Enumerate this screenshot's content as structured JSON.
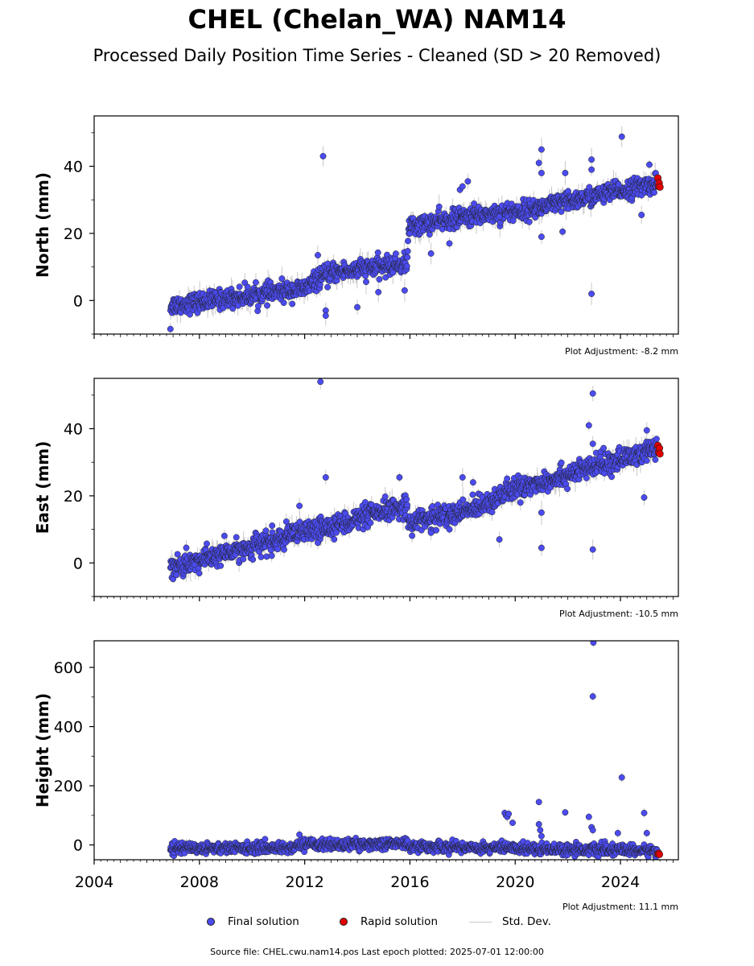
{
  "header": {
    "title": "CHEL (Chelan_WA) NAM14",
    "subtitle": "Processed Daily Position Time Series - Cleaned (SD > 20 Removed)"
  },
  "legend": {
    "final_label": "Final solution",
    "rapid_label": "Rapid solution",
    "std_label": "Std. Dev."
  },
  "footer": {
    "source": "Source file: CHEL.cwu.nam14.pos  Last epoch plotted: 2025-07-01 12:00:00"
  },
  "colors": {
    "final": "#4b4bf0",
    "rapid": "#e00000",
    "stddev": "#c8c8c8",
    "marker_edge": "#202020"
  },
  "chart_data": [
    {
      "type": "scatter",
      "ylabel": "North (mm)",
      "adjustment": "Plot Adjustment: -8.2 mm",
      "xlim": [
        2004,
        2026.2
      ],
      "ylim": [
        -10,
        55
      ],
      "yticks": [
        0,
        20,
        40
      ],
      "xticks": [
        2004,
        2008,
        2012,
        2016,
        2020,
        2024
      ],
      "xtick_labels_shown": false,
      "series": [
        {
          "name": "Final solution",
          "trend": [
            [
              2006.9,
              -1.5
            ],
            [
              2012.0,
              3.5
            ],
            [
              2012.5,
              6.5
            ],
            [
              2013.2,
              8.5
            ],
            [
              2015.9,
              11.0
            ],
            [
              2015.95,
              22.0
            ],
            [
              2018.6,
              25.5
            ],
            [
              2020.5,
              27.0
            ],
            [
              2025.4,
              35.0
            ]
          ],
          "scatter_mm": 1.4,
          "outliers": [
            [
              2006.9,
              -8.5
            ],
            [
              2012.7,
              43.0
            ],
            [
              2012.5,
              13.5
            ],
            [
              2012.8,
              -3.0
            ],
            [
              2012.8,
              -4.5
            ],
            [
              2014.0,
              -2.0
            ],
            [
              2014.8,
              2.5
            ],
            [
              2015.8,
              3.0
            ],
            [
              2016.8,
              14.0
            ],
            [
              2017.5,
              17.0
            ],
            [
              2017.9,
              33.0
            ],
            [
              2018.0,
              34.0
            ],
            [
              2018.2,
              35.5
            ],
            [
              2019.4,
              25.0
            ],
            [
              2020.9,
              41.0
            ],
            [
              2021.0,
              45.0
            ],
            [
              2021.0,
              38.0
            ],
            [
              2021.0,
              19.0
            ],
            [
              2021.9,
              38.0
            ],
            [
              2021.8,
              20.5
            ],
            [
              2022.9,
              42.0
            ],
            [
              2022.9,
              39.0
            ],
            [
              2022.9,
              2.0
            ],
            [
              2024.05,
              48.8
            ],
            [
              2024.8,
              25.5
            ],
            [
              2025.1,
              40.5
            ]
          ]
        },
        {
          "name": "Rapid solution",
          "points": [
            [
              2025.42,
              36.5
            ],
            [
              2025.45,
              34.0
            ],
            [
              2025.47,
              35.0
            ],
            [
              2025.5,
              33.8
            ]
          ]
        }
      ]
    },
    {
      "type": "scatter",
      "ylabel": "East (mm)",
      "adjustment": "Plot Adjustment: -10.5 mm",
      "xlim": [
        2004,
        2026.2
      ],
      "ylim": [
        -10,
        55
      ],
      "yticks": [
        0,
        20,
        40
      ],
      "xticks": [
        2004,
        2008,
        2012,
        2016,
        2020,
        2024
      ],
      "xtick_labels_shown": false,
      "series": [
        {
          "name": "Final solution",
          "trend": [
            [
              2006.9,
              -1.5
            ],
            [
              2015.9,
              17.0
            ],
            [
              2015.95,
              12.0
            ],
            [
              2016.5,
              13.0
            ],
            [
              2018.0,
              15.0
            ],
            [
              2020.0,
              22.0
            ],
            [
              2025.4,
              34.0
            ]
          ],
          "scatter_mm": 1.6,
          "outliers": [
            [
              2007.5,
              4.5
            ],
            [
              2012.6,
              54.0
            ],
            [
              2012.8,
              25.5
            ],
            [
              2012.5,
              6.0
            ],
            [
              2011.8,
              17.0
            ],
            [
              2015.6,
              25.5
            ],
            [
              2016.8,
              9.0
            ],
            [
              2017.5,
              10.0
            ],
            [
              2018.0,
              25.5
            ],
            [
              2018.4,
              24.0
            ],
            [
              2019.4,
              7.0
            ],
            [
              2020.2,
              18.0
            ],
            [
              2021.0,
              15.0
            ],
            [
              2021.0,
              4.5
            ],
            [
              2022.8,
              41.0
            ],
            [
              2022.95,
              50.5
            ],
            [
              2022.95,
              35.5
            ],
            [
              2022.95,
              4.0
            ],
            [
              2024.9,
              19.5
            ],
            [
              2025.0,
              39.5
            ]
          ]
        },
        {
          "name": "Rapid solution",
          "points": [
            [
              2025.42,
              35.0
            ],
            [
              2025.45,
              33.0
            ],
            [
              2025.48,
              34.2
            ],
            [
              2025.5,
              32.5
            ]
          ]
        }
      ]
    },
    {
      "type": "scatter",
      "ylabel": "Height (mm)",
      "adjustment": "Plot Adjustment: 11.1 mm",
      "xlim": [
        2004,
        2026.2
      ],
      "ylim": [
        -50,
        690
      ],
      "yticks": [
        0,
        200,
        400,
        600
      ],
      "xticks": [
        2004,
        2008,
        2012,
        2016,
        2020,
        2024
      ],
      "xtick_labels": [
        "2004",
        "2008",
        "2012",
        "2016",
        "2020",
        "2024"
      ],
      "xtick_labels_shown": true,
      "series": [
        {
          "name": "Final solution",
          "trend": [
            [
              2006.9,
              -10.0
            ],
            [
              2011.5,
              -10.0
            ],
            [
              2012.0,
              5.0
            ],
            [
              2013.0,
              0.0
            ],
            [
              2015.9,
              5.0
            ],
            [
              2016.0,
              -5.0
            ],
            [
              2019.5,
              -10.0
            ],
            [
              2025.4,
              -20.0
            ]
          ],
          "scatter_mm": 9.0,
          "outliers": [
            [
              2011.8,
              35.0
            ],
            [
              2019.6,
              108.0
            ],
            [
              2019.65,
              100.0
            ],
            [
              2019.7,
              95.0
            ],
            [
              2019.75,
              105.0
            ],
            [
              2019.9,
              75.0
            ],
            [
              2020.9,
              145.0
            ],
            [
              2020.9,
              70.0
            ],
            [
              2020.95,
              50.0
            ],
            [
              2021.0,
              30.0
            ],
            [
              2021.9,
              110.0
            ],
            [
              2022.8,
              95.0
            ],
            [
              2022.9,
              60.0
            ],
            [
              2022.95,
              50.0
            ],
            [
              2022.97,
              684.0
            ],
            [
              2022.95,
              502.0
            ],
            [
              2024.05,
              228.0
            ],
            [
              2024.9,
              108.0
            ],
            [
              2025.0,
              40.0
            ],
            [
              2023.9,
              40.0
            ]
          ]
        },
        {
          "name": "Rapid solution",
          "points": [
            [
              2025.42,
              -30.0
            ],
            [
              2025.45,
              -28.0
            ],
            [
              2025.48,
              -32.0
            ]
          ]
        }
      ]
    }
  ]
}
